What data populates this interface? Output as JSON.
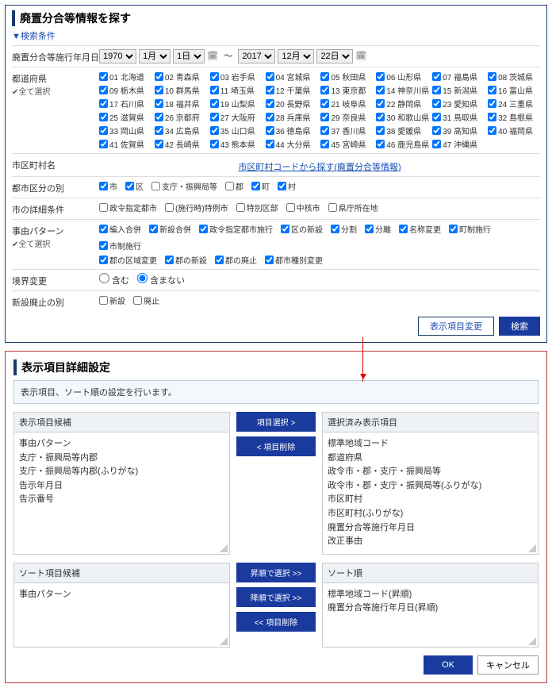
{
  "search": {
    "title": "廃置分合等情報を探す",
    "toggle": "▼検索条件",
    "rows": {
      "date": {
        "label": "廃置分合等施行年月日",
        "from": {
          "y": "1970",
          "m": "1月",
          "d": "1日"
        },
        "to": {
          "y": "2017",
          "m": "12月",
          "d": "22日"
        },
        "sep": "～"
      },
      "pref": {
        "label": "都道府県",
        "sub": "✔全て選択",
        "items": [
          "01 北海道",
          "02 青森県",
          "03 岩手県",
          "04 宮城県",
          "05 秋田県",
          "06 山形県",
          "07 福島県",
          "08 茨城県",
          "09 栃木県",
          "10 群馬県",
          "11 埼玉県",
          "12 千葉県",
          "13 東京都",
          "14 神奈川県",
          "15 新潟県",
          "16 富山県",
          "17 石川県",
          "18 福井県",
          "19 山梨県",
          "20 長野県",
          "21 岐阜県",
          "22 静岡県",
          "23 愛知県",
          "24 三重県",
          "25 滋賀県",
          "26 京都府",
          "27 大阪府",
          "28 兵庫県",
          "29 奈良県",
          "30 和歌山県",
          "31 鳥取県",
          "32 島根県",
          "33 岡山県",
          "34 広島県",
          "35 山口県",
          "36 徳島県",
          "37 香川県",
          "38 愛媛県",
          "39 高知県",
          "40 福岡県",
          "41 佐賀県",
          "42 長崎県",
          "43 熊本県",
          "44 大分県",
          "45 宮崎県",
          "46 鹿児島県",
          "47 沖縄県"
        ]
      },
      "municode": {
        "label": "市区町村名",
        "link": "市区町村コードから探す(廃置分合等情報)"
      },
      "kubun": {
        "label": "都市区分の別",
        "items": [
          "市",
          "区",
          "支庁・振興局等",
          "郡",
          "町",
          "村"
        ],
        "checked": [
          true,
          true,
          false,
          false,
          true,
          true
        ]
      },
      "detail": {
        "label": "市の詳細条件",
        "items": [
          "政令指定都市",
          "(施行時)特例市",
          "特別区部",
          "中核市",
          "県庁所在地"
        ]
      },
      "pattern": {
        "label": "事由パターン",
        "sub": "✔全て選択",
        "l1": [
          "編入合併",
          "新設合併",
          "政令指定都市施行",
          "区の新設",
          "分割",
          "分離",
          "名称変更",
          "町制施行",
          "市制施行"
        ],
        "l2": [
          "郡の区域変更",
          "郡の新設",
          "郡の廃止",
          "都市種別変更"
        ]
      },
      "boundary": {
        "label": "境界変更",
        "opts": [
          "含む",
          "含まない"
        ]
      },
      "abolish": {
        "label": "新設廃止の別",
        "opts": [
          "新設",
          "廃止"
        ]
      }
    },
    "btns": {
      "change": "表示項目変更",
      "search": "検索"
    }
  },
  "settings": {
    "title": "表示項目詳細設定",
    "note": "表示項目、ソート順の設定を行います。",
    "candidates": {
      "head": "表示項目候補",
      "items": [
        "事由パターン",
        "支庁・振興局等内郡",
        "支庁・振興局等内郡(ふりがな)",
        "告示年月日",
        "告示番号"
      ]
    },
    "selected": {
      "head": "選択済み表示項目",
      "items": [
        "標準地域コード",
        "都道府県",
        "政令市・郡・支庁・振興局等",
        "政令市・郡・支庁・振興局等(ふりがな)",
        "市区町村",
        "市区町村(ふりがな)",
        "廃置分合等施行年月日",
        "改正事由"
      ]
    },
    "mid": {
      "sel": "項目選択 >",
      "del": "< 項目削除"
    },
    "sortcand": {
      "head": "ソート項目候補",
      "items": [
        "事由パターン"
      ]
    },
    "sortsel": {
      "head": "ソート順",
      "items": [
        "標準地域コード(昇順)",
        "廃置分合等施行年月日(昇順)"
      ]
    },
    "sortmid": {
      "asc": "昇順で選択 >>",
      "desc": "降順で選択 >>",
      "del": "<< 項目削除"
    },
    "ok": "OK",
    "cancel": "キャンセル"
  }
}
